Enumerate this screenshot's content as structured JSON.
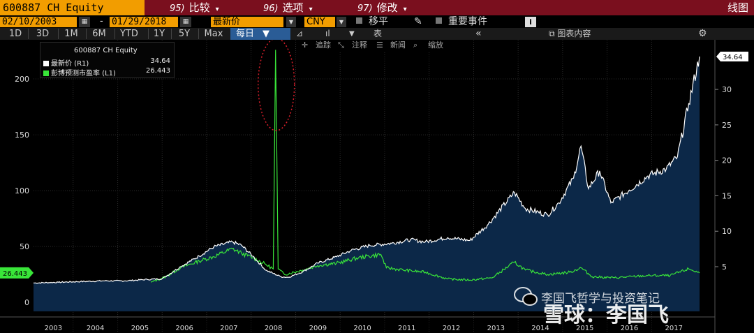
{
  "toolbar": {
    "ticker": "600887 CH Equity",
    "compare_num": "95)",
    "compare_label": "比较",
    "options_num": "96)",
    "options_label": "选项",
    "edit_num": "97)",
    "edit_label": "修改",
    "chart_type": "线图",
    "start_date": "02/10/2003",
    "end_date": "01/29/2018",
    "date_separator": "-",
    "field": "最新价",
    "currency": "CNY",
    "shift_label": "移平",
    "events_label": "重要事件",
    "info_label": "i",
    "periods": [
      "1D",
      "3D",
      "1M",
      "6M",
      "YTD",
      "1Y",
      "5Y",
      "Max"
    ],
    "frequency": "每日",
    "table_label": "表",
    "chart_contents_label": "图表内容"
  },
  "legend": {
    "title": "600887 CH Equity",
    "items": [
      {
        "label": "最新价  (R1)",
        "value": "34.64",
        "color": "#ffffff"
      },
      {
        "label": "彭博预测市盈率  (L1)",
        "value": "26.443",
        "color": "#39e639"
      }
    ]
  },
  "annotation_tools": {
    "track": "追踪",
    "annotate": "注释",
    "news": "新闻",
    "zoom": "缩放"
  },
  "watermark": {
    "line1": "李国飞哲学与投资笔记",
    "line2": "雪球：李国飞"
  },
  "colors": {
    "price": "#ffffff",
    "pe": "#39e639",
    "fill": "#0c2848",
    "toolbar_red": "#7a0f1e",
    "field_orange": "#f29d00",
    "highlight_ellipse": "#d81e2a"
  },
  "chart_data": {
    "type": "line",
    "x_axis": {
      "type": "time",
      "range": [
        "2003-02-10",
        "2018-01-29"
      ],
      "tick_labels": [
        "2003",
        "2004",
        "2005",
        "2006",
        "2007",
        "2008",
        "2009",
        "2010",
        "2011",
        "2012",
        "2013",
        "2014",
        "2015",
        "2016",
        "2017"
      ]
    },
    "left_axis": {
      "ticks": [
        0,
        50,
        100,
        150,
        200
      ],
      "range": [
        -8,
        235
      ]
    },
    "right_axis": {
      "ticks": [
        5,
        10,
        15,
        20,
        25,
        30
      ],
      "range": [
        -1.3,
        37
      ]
    },
    "series": [
      {
        "name": "最新价",
        "axis": "right",
        "last_value": 34.64,
        "points": [
          [
            "2003-02-10",
            2.7
          ],
          [
            "2003-09-01",
            2.8
          ],
          [
            "2004-03-01",
            2.9
          ],
          [
            "2004-09-01",
            3.0
          ],
          [
            "2005-03-01",
            3.0
          ],
          [
            "2005-09-01",
            3.2
          ],
          [
            "2006-01-01",
            3.3
          ],
          [
            "2006-06-01",
            5.0
          ],
          [
            "2006-11-01",
            6.5
          ],
          [
            "2007-03-01",
            7.8
          ],
          [
            "2007-08-01",
            8.5
          ],
          [
            "2007-10-15",
            8.0
          ],
          [
            "2008-01-15",
            6.5
          ],
          [
            "2008-05-01",
            4.5
          ],
          [
            "2008-09-01",
            3.6
          ],
          [
            "2008-11-01",
            3.5
          ],
          [
            "2009-03-01",
            4.3
          ],
          [
            "2009-07-01",
            5.5
          ],
          [
            "2009-12-01",
            6.4
          ],
          [
            "2010-04-01",
            7.3
          ],
          [
            "2010-09-01",
            8.0
          ],
          [
            "2011-03-01",
            8.3
          ],
          [
            "2011-08-01",
            8.8
          ],
          [
            "2011-12-01",
            8.5
          ],
          [
            "2012-06-01",
            9.1
          ],
          [
            "2012-12-01",
            8.7
          ],
          [
            "2013-05-01",
            11.0
          ],
          [
            "2013-12-01",
            15.5
          ],
          [
            "2014-03-01",
            13.2
          ],
          [
            "2014-09-01",
            12.3
          ],
          [
            "2014-12-01",
            14.0
          ],
          [
            "2015-04-01",
            17.5
          ],
          [
            "2015-06-01",
            22.0
          ],
          [
            "2015-08-01",
            16.0
          ],
          [
            "2015-11-01",
            18.5
          ],
          [
            "2016-02-01",
            14.0
          ],
          [
            "2016-07-01",
            15.8
          ],
          [
            "2016-12-01",
            17.8
          ],
          [
            "2017-05-01",
            18.8
          ],
          [
            "2017-08-01",
            20.5
          ],
          [
            "2017-11-01",
            28.0
          ],
          [
            "2018-01-29",
            34.64
          ]
        ]
      },
      {
        "name": "彭博预测市盈率",
        "axis": "left",
        "last_value": 26.443,
        "points": [
          [
            "2005-10-01",
            18.0
          ],
          [
            "2006-02-01",
            23.0
          ],
          [
            "2006-06-01",
            31.0
          ],
          [
            "2006-11-01",
            37.0
          ],
          [
            "2007-03-01",
            41.0
          ],
          [
            "2007-08-01",
            48.0
          ],
          [
            "2007-10-15",
            44.0
          ],
          [
            "2008-01-15",
            40.0
          ],
          [
            "2008-05-01",
            34.0
          ],
          [
            "2008-07-01",
            30.0
          ],
          [
            "2008-07-20",
            226.0
          ],
          [
            "2008-08-10",
            30.0
          ],
          [
            "2008-10-01",
            25.0
          ],
          [
            "2009-03-01",
            29.0
          ],
          [
            "2009-07-01",
            33.0
          ],
          [
            "2009-12-01",
            35.0
          ],
          [
            "2010-06-01",
            40.0
          ],
          [
            "2010-12-01",
            43.0
          ],
          [
            "2011-01-15",
            31.0
          ],
          [
            "2011-06-01",
            29.0
          ],
          [
            "2011-12-01",
            27.0
          ],
          [
            "2012-06-01",
            21.0
          ],
          [
            "2012-12-01",
            20.0
          ],
          [
            "2013-06-01",
            22.0
          ],
          [
            "2013-12-01",
            36.0
          ],
          [
            "2014-03-01",
            29.0
          ],
          [
            "2014-09-01",
            25.0
          ],
          [
            "2015-03-01",
            27.0
          ],
          [
            "2015-06-01",
            31.0
          ],
          [
            "2015-09-01",
            23.0
          ],
          [
            "2016-03-01",
            22.0
          ],
          [
            "2016-12-01",
            24.0
          ],
          [
            "2017-06-01",
            24.0
          ],
          [
            "2017-11-01",
            30.0
          ],
          [
            "2018-01-29",
            26.443
          ]
        ]
      }
    ],
    "annotations": [
      {
        "type": "dotted-ellipse",
        "around": "2008-07-20 spike in 彭博预测市盈率"
      }
    ],
    "grid": true,
    "legend_position": "top-left"
  }
}
